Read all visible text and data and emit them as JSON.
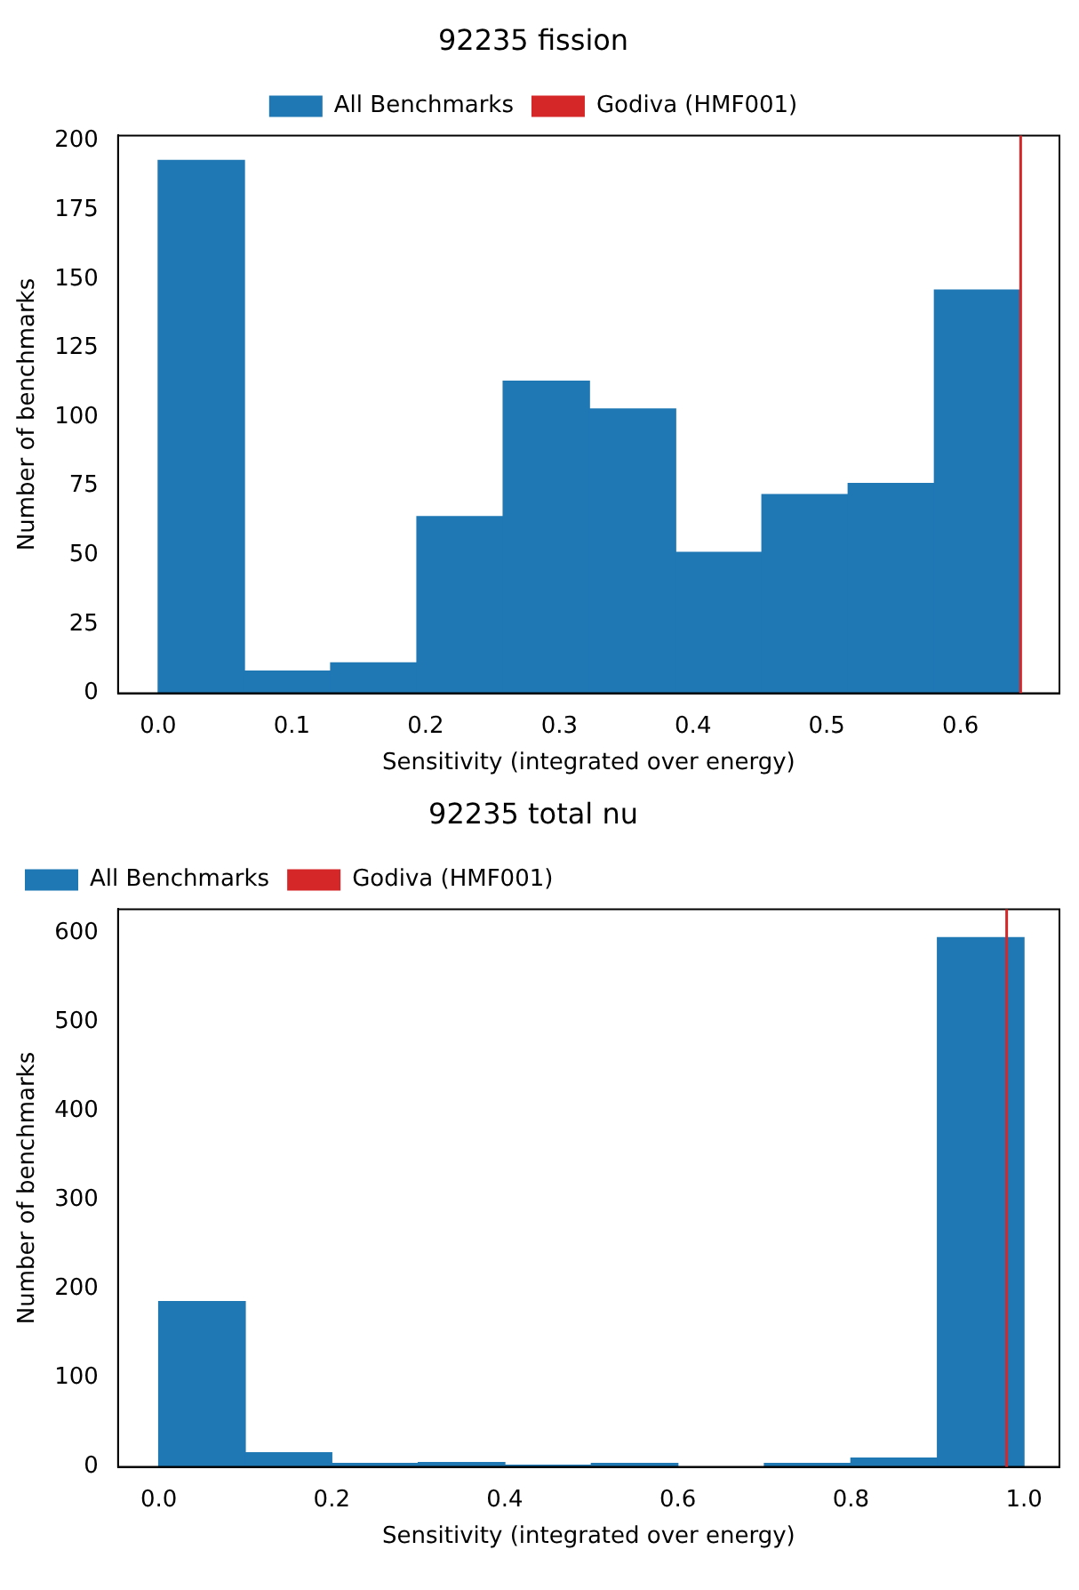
{
  "chart_data": [
    {
      "type": "histogram",
      "title": "92235 fission",
      "xlabel": "Sensitivity (integrated over energy)",
      "ylabel": "Number of benchmarks",
      "bins": [
        0,
        0.0645,
        0.129,
        0.1935,
        0.258,
        0.3225,
        0.387,
        0.4515,
        0.516,
        0.5805,
        0.645
      ],
      "series": [
        {
          "name": "All Benchmarks",
          "color": "#1f77b4",
          "values": [
            193,
            8,
            11,
            64,
            113,
            103,
            51,
            72,
            76,
            146
          ]
        }
      ],
      "ref_lines": [
        {
          "axis": "x",
          "value": 0.645,
          "label": "Godiva (HMF001)",
          "color": "#d62728"
        }
      ],
      "xlim": [
        -0.03,
        0.674
      ],
      "ylim": [
        0,
        202
      ],
      "xticks": [
        {
          "value": 0,
          "label": "0.0"
        },
        {
          "value": 0.1,
          "label": "0.1"
        },
        {
          "value": 0.2,
          "label": "0.2"
        },
        {
          "value": 0.3,
          "label": "0.3"
        },
        {
          "value": 0.4,
          "label": "0.4"
        },
        {
          "value": 0.5,
          "label": "0.5"
        },
        {
          "value": 0.6,
          "label": "0.6"
        }
      ],
      "yticks": [
        0,
        25,
        50,
        75,
        100,
        125,
        150,
        175,
        200
      ],
      "grid": false,
      "legend": "top"
    },
    {
      "type": "histogram",
      "title": "92235 total nu",
      "xlabel": "Sensitivity (integrated over energy)",
      "ylabel": "Number of benchmarks",
      "bins": [
        0,
        0.1,
        0.2,
        0.3,
        0.4,
        0.5,
        0.6,
        0.7,
        0.8,
        0.9,
        1.0
      ],
      "series": [
        {
          "name": "All Benchmarks",
          "color": "#1f77b4",
          "values": [
            186,
            16,
            4,
            5,
            2,
            4,
            0,
            4,
            10,
            595
          ]
        }
      ],
      "ref_lines": [
        {
          "axis": "x",
          "value": 0.98,
          "label": "Godiva (HMF001)",
          "color": "#d62728"
        }
      ],
      "xlim": [
        -0.047,
        1.041
      ],
      "ylim": [
        0,
        627
      ],
      "xticks": [
        {
          "value": 0,
          "label": "0.0"
        },
        {
          "value": 0.2,
          "label": "0.2"
        },
        {
          "value": 0.4,
          "label": "0.4"
        },
        {
          "value": 0.6,
          "label": "0.6"
        },
        {
          "value": 0.8,
          "label": "0.8"
        },
        {
          "value": 1.0,
          "label": "1.0"
        }
      ],
      "yticks": [
        0,
        100,
        200,
        300,
        400,
        500,
        600
      ],
      "grid": false,
      "legend": "top left"
    }
  ]
}
